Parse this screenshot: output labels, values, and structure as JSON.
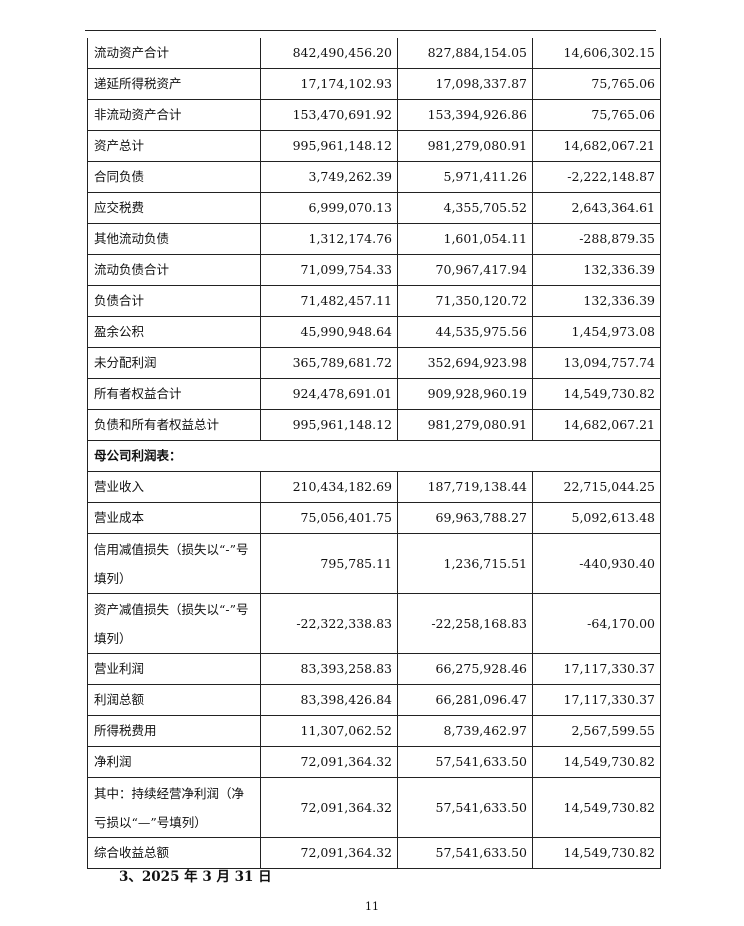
{
  "balance_rows": [
    {
      "label": "流动资产合计",
      "v1": "842,490,456.20",
      "v2": "827,884,154.05",
      "v3": "14,606,302.15"
    },
    {
      "label": "递延所得税资产",
      "v1": "17,174,102.93",
      "v2": "17,098,337.87",
      "v3": "75,765.06"
    },
    {
      "label": "非流动资产合计",
      "v1": "153,470,691.92",
      "v2": "153,394,926.86",
      "v3": "75,765.06"
    },
    {
      "label": "资产总计",
      "v1": "995,961,148.12",
      "v2": "981,279,080.91",
      "v3": "14,682,067.21"
    },
    {
      "label": "合同负债",
      "v1": "3,749,262.39",
      "v2": "5,971,411.26",
      "v3": "-2,222,148.87"
    },
    {
      "label": "应交税费",
      "v1": "6,999,070.13",
      "v2": "4,355,705.52",
      "v3": "2,643,364.61"
    },
    {
      "label": "其他流动负债",
      "v1": "1,312,174.76",
      "v2": "1,601,054.11",
      "v3": "-288,879.35"
    },
    {
      "label": "流动负债合计",
      "v1": "71,099,754.33",
      "v2": "70,967,417.94",
      "v3": "132,336.39"
    },
    {
      "label": "负债合计",
      "v1": "71,482,457.11",
      "v2": "71,350,120.72",
      "v3": "132,336.39"
    },
    {
      "label": "盈余公积",
      "v1": "45,990,948.64",
      "v2": "44,535,975.56",
      "v3": "1,454,973.08"
    },
    {
      "label": "未分配利润",
      "v1": "365,789,681.72",
      "v2": "352,694,923.98",
      "v3": "13,094,757.74"
    },
    {
      "label": "所有者权益合计",
      "v1": "924,478,691.01",
      "v2": "909,928,960.19",
      "v3": "14,549,730.82"
    },
    {
      "label": "负债和所有者权益总计",
      "v1": "995,961,148.12",
      "v2": "981,279,080.91",
      "v3": "14,682,067.21"
    }
  ],
  "income_section_title": "母公司利润表：",
  "income_rows": [
    {
      "label": "营业收入",
      "v1": "210,434,182.69",
      "v2": "187,719,138.44",
      "v3": "22,715,044.25"
    },
    {
      "label": "营业成本",
      "v1": "75,056,401.75",
      "v2": "69,963,788.27",
      "v3": "5,092,613.48"
    },
    {
      "label": "信用减值损失（损失以“-”号填列）",
      "v1": "795,785.11",
      "v2": "1,236,715.51",
      "v3": "-440,930.40"
    },
    {
      "label": "资产减值损失（损失以“-”号填列）",
      "v1": "-22,322,338.83",
      "v2": "-22,258,168.83",
      "v3": "-64,170.00"
    },
    {
      "label": "营业利润",
      "v1": "83,393,258.83",
      "v2": "66,275,928.46",
      "v3": "17,117,330.37"
    },
    {
      "label": "利润总额",
      "v1": "83,398,426.84",
      "v2": "66,281,096.47",
      "v3": "17,117,330.37"
    },
    {
      "label": "所得税费用",
      "v1": "11,307,062.52",
      "v2": "8,739,462.97",
      "v3": "2,567,599.55"
    },
    {
      "label": "净利润",
      "v1": "72,091,364.32",
      "v2": "57,541,633.50",
      "v3": "14,549,730.82"
    },
    {
      "label": "其中：持续经营净利润（净亏损以“—”号填列）",
      "v1": "72,091,364.32",
      "v2": "57,541,633.50",
      "v3": "14,549,730.82"
    },
    {
      "label": "综合收益总额",
      "v1": "72,091,364.32",
      "v2": "57,541,633.50",
      "v3": "14,549,730.82"
    }
  ],
  "subheading": "3、2025 年 3 月 31 日",
  "page_number": "11"
}
